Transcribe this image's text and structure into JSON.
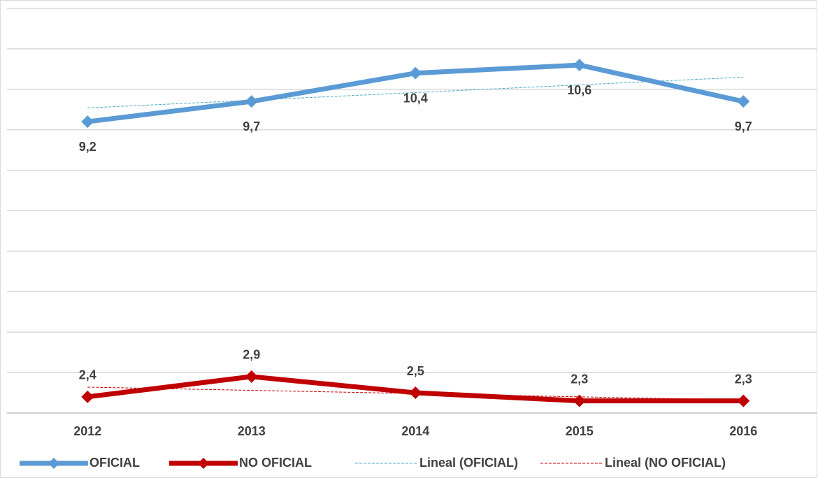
{
  "chart_data": {
    "type": "line",
    "categories": [
      "2012",
      "2013",
      "2014",
      "2015",
      "2016"
    ],
    "series": [
      {
        "name": "OFICIAL",
        "color": "#5b9bd5",
        "values": [
          9.2,
          9.7,
          10.4,
          10.6,
          9.7
        ],
        "value_labels": [
          "9,2",
          "9,7",
          "10,4",
          "10,6",
          "9,7"
        ],
        "label_position": "below",
        "trendline": {
          "name": "Lineal (OFICIAL)",
          "color": "#4bacc6"
        }
      },
      {
        "name": "NO OFICIAL",
        "color": "#c00000",
        "values": [
          2.4,
          2.9,
          2.5,
          2.3,
          2.3
        ],
        "value_labels": [
          "2,4",
          "2,9",
          "2,5",
          "2,3",
          "2,3"
        ],
        "label_position": "above",
        "trendline": {
          "name": "Lineal (NO OFICIAL)",
          "color": "#c00000"
        }
      }
    ],
    "ylim": [
      2,
      12
    ],
    "yticks": [
      2,
      3,
      4,
      5,
      6,
      7,
      8,
      9,
      10,
      11,
      12
    ],
    "grid": true,
    "legend": "bottom"
  }
}
